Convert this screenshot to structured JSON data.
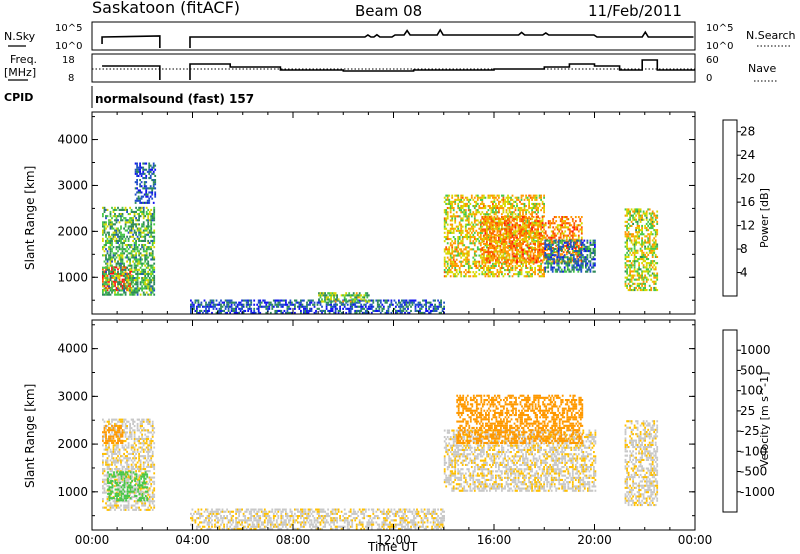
{
  "header": {
    "site": "Saskatoon (fitACF)",
    "beam": "Beam 08",
    "date": "11/Feb/2011",
    "cpid_label": "CPID",
    "cpid_value": "normalsound (fast) 157"
  },
  "noise_panel": {
    "left_label": "N.Sky",
    "right_label": "N.Search",
    "left_ticks": [
      "10^5",
      "10^0"
    ],
    "right_ticks": [
      "10^5",
      "10^0"
    ]
  },
  "freq_panel": {
    "left_label_1": "Freq.",
    "left_label_2": "[MHz]",
    "right_label": "Nave",
    "left_ticks": [
      "18",
      "8"
    ],
    "right_ticks": [
      "60",
      "0"
    ]
  },
  "colors": {
    "power_scale": [
      "#1010f0",
      "#2050c8",
      "#2e8a5a",
      "#48c848",
      "#d8d800",
      "#ff9900",
      "#ff5500",
      "#ff1010"
    ],
    "velocity_scale": [
      "#ff1010",
      "#ff5500",
      "#ff9900",
      "#ffc000",
      "#c8c8c8",
      "#a0a0a0",
      "#48c848",
      "#2e8a5a",
      "#2050c8",
      "#1010b8"
    ]
  },
  "chart_data": [
    {
      "type": "heatmap",
      "title": "Power",
      "ylabel": "Slant Range [km]",
      "xlabel": "Time UT",
      "x_ticks": [
        "00:00",
        "04:00",
        "08:00",
        "12:00",
        "16:00",
        "20:00",
        "00:00"
      ],
      "y_ticks": [
        "1000",
        "2000",
        "3000",
        "4000"
      ],
      "ylim": [
        200,
        4600
      ],
      "xlim_hours": [
        0,
        24
      ],
      "colorbar": {
        "label": "Power [dB]",
        "ticks": [
          "4",
          "8",
          "12",
          "16",
          "20",
          "24",
          "28"
        ],
        "range": [
          0,
          30
        ]
      },
      "echo_regions": [
        {
          "t_start": 0.4,
          "t_end": 1.6,
          "r_start": 700,
          "r_end": 1200,
          "value": 28
        },
        {
          "t_start": 0.4,
          "t_end": 2.5,
          "r_start": 600,
          "r_end": 2500,
          "value": 12
        },
        {
          "t_start": 1.7,
          "t_end": 2.5,
          "r_start": 2600,
          "r_end": 3500,
          "value": 6
        },
        {
          "t_start": 3.9,
          "t_end": 14.0,
          "r_start": 200,
          "r_end": 500,
          "value": 6
        },
        {
          "t_start": 9.0,
          "t_end": 11.0,
          "r_start": 450,
          "r_end": 650,
          "value": 14
        },
        {
          "t_start": 14.0,
          "t_end": 18.0,
          "r_start": 1000,
          "r_end": 2800,
          "value": 18
        },
        {
          "t_start": 15.5,
          "t_end": 19.5,
          "r_start": 1300,
          "r_end": 2300,
          "value": 22
        },
        {
          "t_start": 18.0,
          "t_end": 20.0,
          "r_start": 1100,
          "r_end": 1800,
          "value": 8
        },
        {
          "t_start": 21.2,
          "t_end": 22.5,
          "r_start": 700,
          "r_end": 2500,
          "value": 16
        }
      ]
    },
    {
      "type": "heatmap",
      "title": "Velocity",
      "ylabel": "Slant Range [km]",
      "xlabel": "Time UT",
      "x_ticks": [
        "00:00",
        "04:00",
        "08:00",
        "12:00",
        "16:00",
        "20:00",
        "00:00"
      ],
      "y_ticks": [
        "1000",
        "2000",
        "3000",
        "4000"
      ],
      "ylim": [
        200,
        4600
      ],
      "xlim_hours": [
        0,
        24
      ],
      "colorbar": {
        "label": "Velocity [m s^-1]",
        "ticks": [
          "1000",
          "500",
          "100",
          "25",
          "-25",
          "-100",
          "-500",
          "-1000"
        ]
      },
      "echo_regions": [
        {
          "t_start": 0.4,
          "t_end": 2.5,
          "r_start": 600,
          "r_end": 2500,
          "value": 0
        },
        {
          "t_start": 0.4,
          "t_end": 1.2,
          "r_start": 2000,
          "r_end": 2400,
          "value": -300
        },
        {
          "t_start": 0.6,
          "t_end": 2.2,
          "r_start": 800,
          "r_end": 1400,
          "value": 150
        },
        {
          "t_start": 3.9,
          "t_end": 14.0,
          "r_start": 200,
          "r_end": 650,
          "value": 0
        },
        {
          "t_start": 14.0,
          "t_end": 20.0,
          "r_start": 1000,
          "r_end": 2300,
          "value": 0
        },
        {
          "t_start": 14.5,
          "t_end": 19.5,
          "r_start": 2000,
          "r_end": 3000,
          "value": -300
        },
        {
          "t_start": 21.2,
          "t_end": 22.5,
          "r_start": 700,
          "r_end": 2500,
          "value": 0
        }
      ]
    }
  ]
}
